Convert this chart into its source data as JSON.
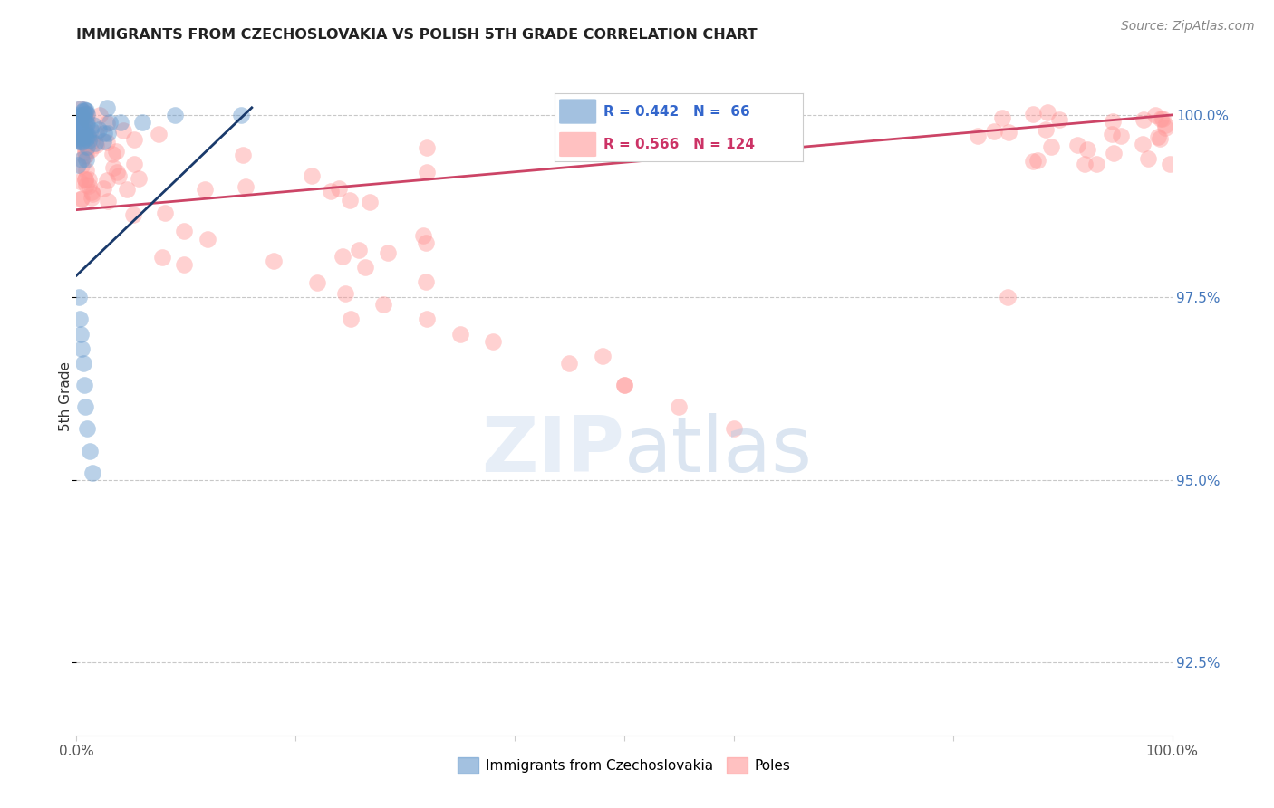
{
  "title": "IMMIGRANTS FROM CZECHOSLOVAKIA VS POLISH 5TH GRADE CORRELATION CHART",
  "source": "Source: ZipAtlas.com",
  "ylabel": "5th Grade",
  "ylabel_right_ticks": [
    "100.0%",
    "97.5%",
    "95.0%",
    "92.5%"
  ],
  "ylabel_right_vals": [
    1.0,
    0.975,
    0.95,
    0.925
  ],
  "legend_blue_r": "0.442",
  "legend_blue_n": "66",
  "legend_pink_r": "0.566",
  "legend_pink_n": "124",
  "legend_label_blue": "Immigrants from Czechoslovakia",
  "legend_label_pink": "Poles",
  "blue_color": "#6699CC",
  "pink_color": "#FF9999",
  "trendline_blue": "#1a3a6b",
  "trendline_pink": "#cc4466",
  "background_color": "#ffffff",
  "grid_color": "#c8c8c8",
  "xlim": [
    0.0,
    1.0
  ],
  "ylim": [
    0.915,
    1.008
  ]
}
